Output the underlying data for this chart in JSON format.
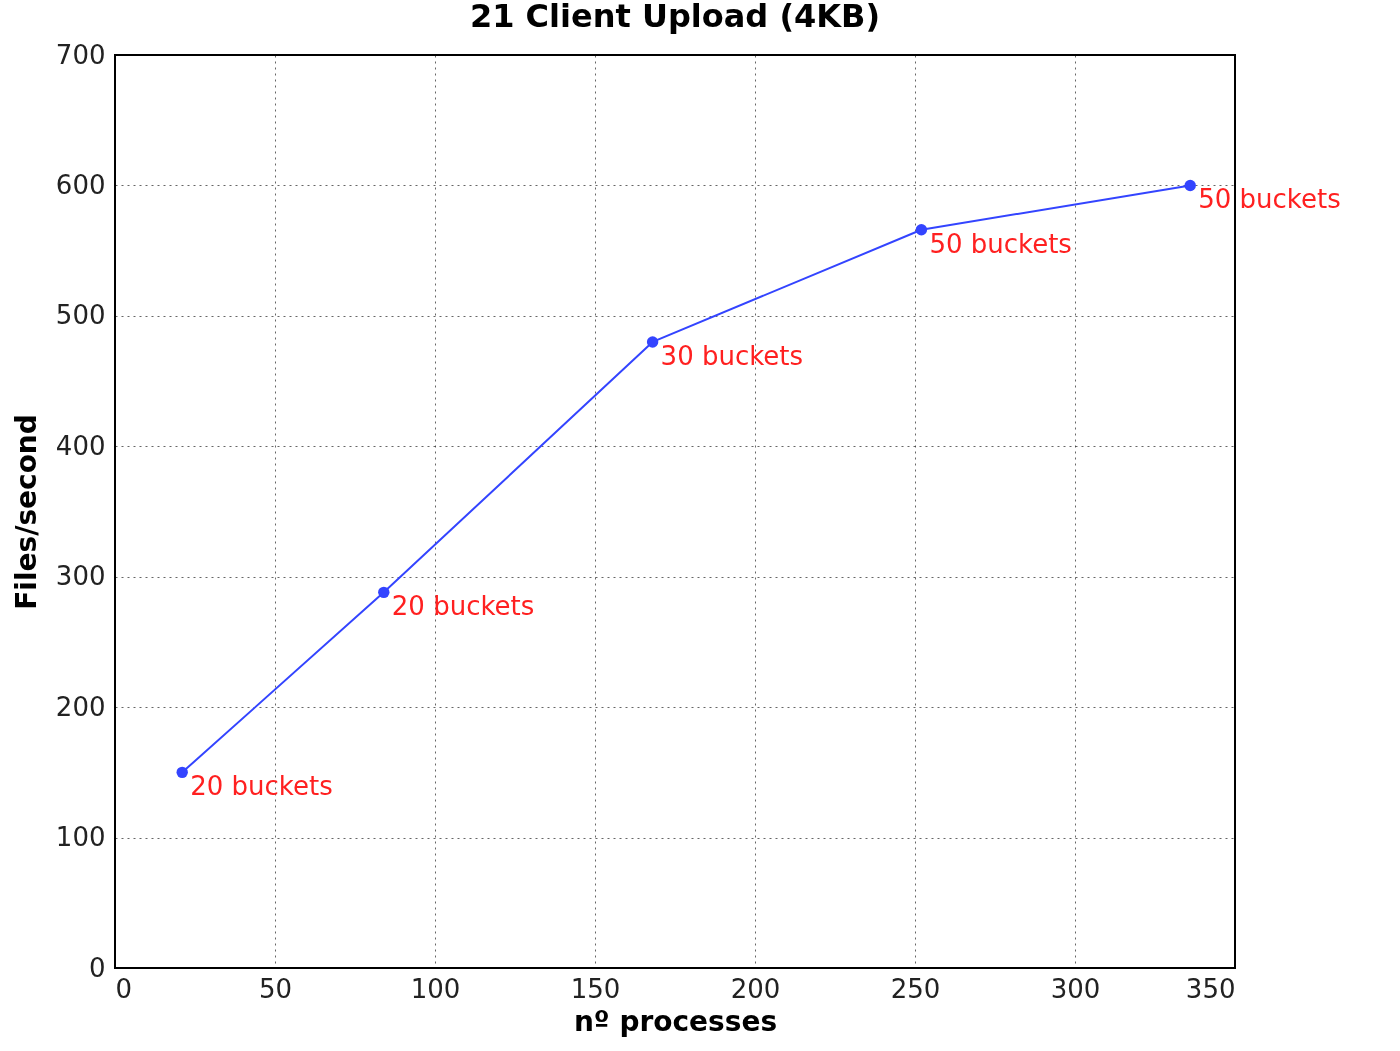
{
  "chart_data": {
    "type": "line",
    "title": "21 Client Upload (4KB)",
    "xlabel": "nº processes",
    "ylabel": "Files/second",
    "x": [
      21,
      84,
      168,
      252,
      336
    ],
    "series": [
      {
        "color": "#3344ff",
        "values": [
          150,
          288,
          480,
          566,
          600
        ]
      }
    ],
    "xlim": [
      0,
      350
    ],
    "xticks": [
      0,
      50,
      100,
      150,
      200,
      250,
      300,
      350
    ],
    "ylim": [
      0,
      700
    ],
    "yticks": [
      0,
      100,
      200,
      300,
      400,
      500,
      600,
      700
    ],
    "grid": true,
    "marker": "circle",
    "line_style": "solid",
    "annotations": [
      {
        "text": "20 buckets",
        "x": 21,
        "y": 150
      },
      {
        "text": "20 buckets",
        "x": 84,
        "y": 288
      },
      {
        "text": "30 buckets",
        "x": 168,
        "y": 480
      },
      {
        "text": "50 buckets",
        "x": 252,
        "y": 566
      },
      {
        "text": "50 buckets",
        "x": 336,
        "y": 600
      }
    ]
  }
}
